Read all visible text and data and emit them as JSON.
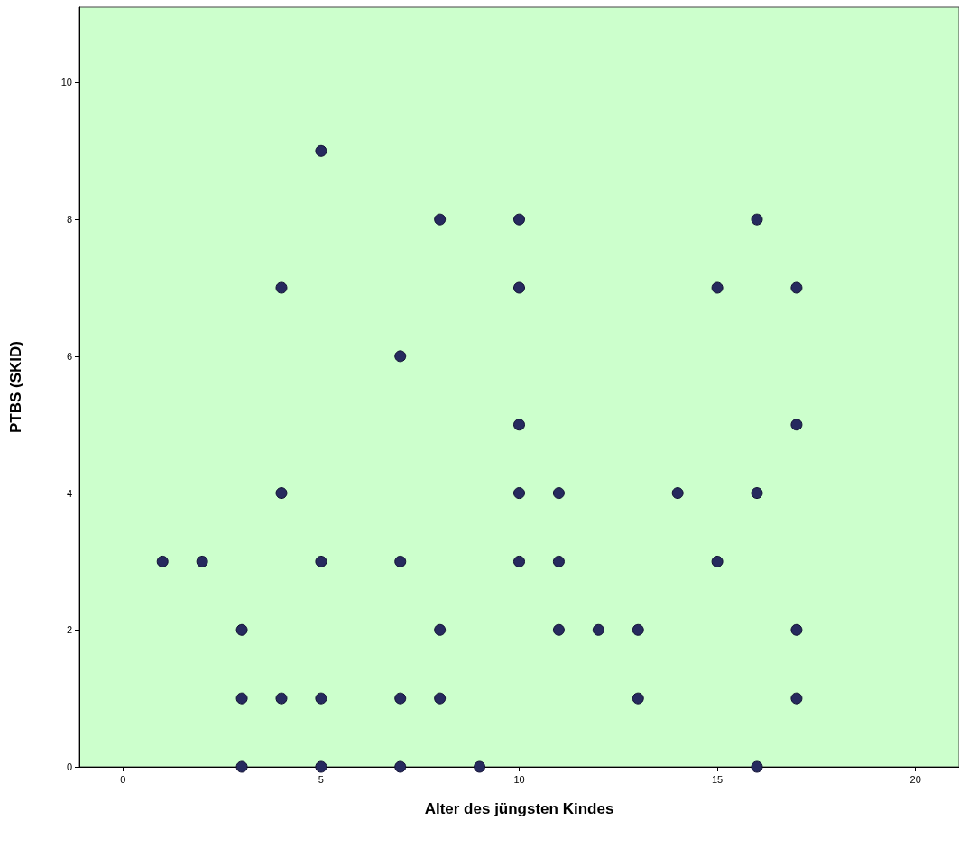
{
  "chart_data": {
    "type": "scatter",
    "xlabel": "Alter des jüngsten Kindes",
    "ylabel": "PTBS (SKID)",
    "x": [
      1,
      2,
      3,
      3,
      3,
      4,
      4,
      4,
      5,
      5,
      5,
      5,
      7,
      7,
      7,
      7,
      8,
      8,
      8,
      9,
      10,
      10,
      10,
      10,
      10,
      11,
      11,
      11,
      12,
      13,
      13,
      14,
      15,
      15,
      16,
      16,
      16,
      17,
      17,
      17,
      17
    ],
    "series": [
      {
        "color": "#262a5e",
        "values": [
          3,
          3,
          2,
          1,
          0,
          7,
          4,
          1,
          9,
          3,
          1,
          0,
          6,
          3,
          1,
          0,
          8,
          2,
          1,
          0,
          8,
          7,
          5,
          4,
          3,
          4,
          3,
          2,
          2,
          2,
          1,
          4,
          7,
          3,
          8,
          4,
          0,
          7,
          5,
          2,
          1
        ]
      }
    ],
    "xlim": [
      -1.1,
      21.1
    ],
    "ylim": [
      0,
      11.1
    ],
    "xticks": [
      0,
      5,
      10,
      15,
      20
    ],
    "yticks": [
      0,
      2,
      4,
      6,
      8,
      10
    ],
    "marker": "circle",
    "grid": false
  }
}
